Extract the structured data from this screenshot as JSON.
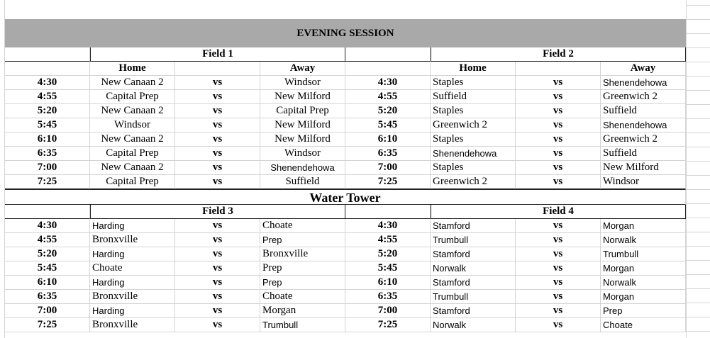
{
  "title": "EVENING SESSION",
  "section2_title": "Water Tower",
  "col_home": "Home",
  "col_away": "Away",
  "vs": "vs",
  "blocks": [
    {
      "fields": [
        {
          "name": "Field 1",
          "games": [
            {
              "time": "4:30",
              "home": "New Canaan 2",
              "away": "Windsor"
            },
            {
              "time": "4:55",
              "home": "Capital Prep",
              "away": "New Milford"
            },
            {
              "time": "5:20",
              "home": "New Canaan 2",
              "away": "Capital Prep"
            },
            {
              "time": "5:45",
              "home": "Windsor",
              "away": "New Milford"
            },
            {
              "time": "6:10",
              "home": "New Canaan 2",
              "away": "New Milford"
            },
            {
              "time": "6:35",
              "home": "Capital Prep",
              "away": "Windsor"
            },
            {
              "time": "7:00",
              "home": "New Canaan 2",
              "away": "Shenendehowa"
            },
            {
              "time": "7:25",
              "home": "Capital Prep",
              "away": "Suffield"
            }
          ]
        },
        {
          "name": "Field 2",
          "games": [
            {
              "time": "4:30",
              "home": "Staples",
              "away": "Shenendehowa"
            },
            {
              "time": "4:55",
              "home": "Suffield",
              "away": "Greenwich 2"
            },
            {
              "time": "5:20",
              "home": "Staples",
              "away": "Suffield"
            },
            {
              "time": "5:45",
              "home": "Greenwich 2",
              "away": "Shenendehowa"
            },
            {
              "time": "6:10",
              "home": "Staples",
              "away": "Greenwich 2"
            },
            {
              "time": "6:35",
              "home": "Shenendehowa",
              "away": "Suffield"
            },
            {
              "time": "7:00",
              "home": "Staples",
              "away": "New Milford"
            },
            {
              "time": "7:25",
              "home": "Greenwich 2",
              "away": "Windsor"
            }
          ]
        }
      ]
    },
    {
      "fields": [
        {
          "name": "Field 3",
          "games": [
            {
              "time": "4:30",
              "home": "Harding",
              "away": "Choate"
            },
            {
              "time": "4:55",
              "home": "Bronxville",
              "away": "Prep"
            },
            {
              "time": "5:20",
              "home": "Harding",
              "away": "Bronxville"
            },
            {
              "time": "5:45",
              "home": "Choate",
              "away": "Prep"
            },
            {
              "time": "6:10",
              "home": "Harding",
              "away": "Prep"
            },
            {
              "time": "6:35",
              "home": "Bronxville",
              "away": "Choate"
            },
            {
              "time": "7:00",
              "home": "Harding",
              "away": "Morgan"
            },
            {
              "time": "7:25",
              "home": "Bronxville",
              "away": "Trumbull"
            }
          ]
        },
        {
          "name": "Field 4",
          "games": [
            {
              "time": "4:30",
              "home": "Stamford",
              "away": "Morgan"
            },
            {
              "time": "4:55",
              "home": "Trumbull",
              "away": "Norwalk"
            },
            {
              "time": "5:20",
              "home": "Stamford",
              "away": "Trumbull"
            },
            {
              "time": "5:45",
              "home": "Norwalk",
              "away": "Morgan"
            },
            {
              "time": "6:10",
              "home": "Stamford",
              "away": "Norwalk"
            },
            {
              "time": "6:35",
              "home": "Trumbull",
              "away": "Morgan"
            },
            {
              "time": "7:00",
              "home": "Stamford",
              "away": "Prep"
            },
            {
              "time": "7:25",
              "home": "Norwalk",
              "away": "Choate"
            }
          ]
        }
      ]
    }
  ]
}
